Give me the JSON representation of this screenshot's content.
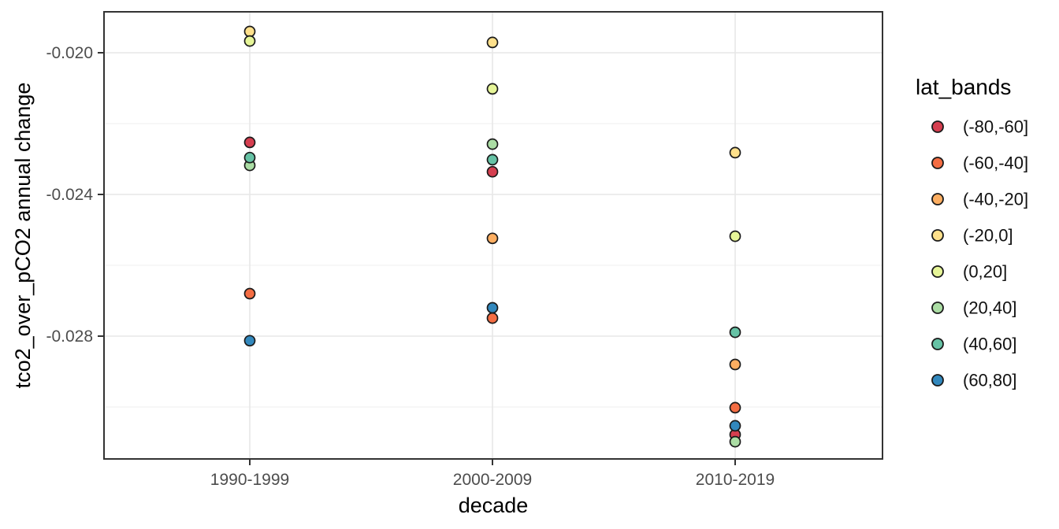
{
  "chart_data": {
    "type": "scatter",
    "title": "",
    "xlabel": "decade",
    "ylabel": "tco2_over_pCO2 annual change",
    "categories": [
      "1990-1999",
      "2000-2009",
      "2010-2019"
    ],
    "series": [
      {
        "name": "(-80,-60]",
        "color": "#d53e4f",
        "values": [
          -0.02253,
          -0.02336,
          -0.03078
        ]
      },
      {
        "name": "(-60,-40]",
        "color": "#f46d43",
        "values": [
          -0.0268,
          -0.02749,
          -0.03002
        ]
      },
      {
        "name": "(-40,-20]",
        "color": "#fdae61",
        "values": [
          null,
          -0.02524,
          -0.0288
        ]
      },
      {
        "name": "(-20,0]",
        "color": "#fee08b",
        "values": [
          -0.0194,
          -0.01971,
          -0.02282
        ]
      },
      {
        "name": "(0,20]",
        "color": "#e6f598",
        "values": [
          -0.01967,
          -0.02102,
          -0.02518
        ]
      },
      {
        "name": "(20,40]",
        "color": "#abdda4",
        "values": [
          -0.02318,
          -0.02258,
          -0.03098
        ]
      },
      {
        "name": "(40,60]",
        "color": "#66c2a5",
        "values": [
          -0.02296,
          -0.02302,
          -0.02789
        ]
      },
      {
        "name": "(60,80]",
        "color": "#3288bd",
        "values": [
          -0.02813,
          -0.0272,
          -0.03053
        ]
      }
    ],
    "legend": {
      "title": "lat_bands",
      "position": "right"
    },
    "y_axis": {
      "major_ticks": [
        -0.02,
        -0.024,
        -0.028
      ],
      "tick_labels": [
        "-0.020",
        "-0.024",
        "-0.028"
      ],
      "minor_ticks": [
        -0.022,
        -0.026,
        -0.03
      ],
      "ylim": [
        -0.0315,
        -0.0188
      ]
    },
    "x_axis": {
      "tick_labels": [
        "1990-1999",
        "2000-2009",
        "2010-2019"
      ]
    },
    "grid": true,
    "style": {
      "point_outline": "#1a1a1a",
      "panel_border": "#333333",
      "grid_major_color": "#e7e7e7",
      "grid_minor_color": "#efefef",
      "tick_text_color": "#4d4d4d"
    }
  }
}
